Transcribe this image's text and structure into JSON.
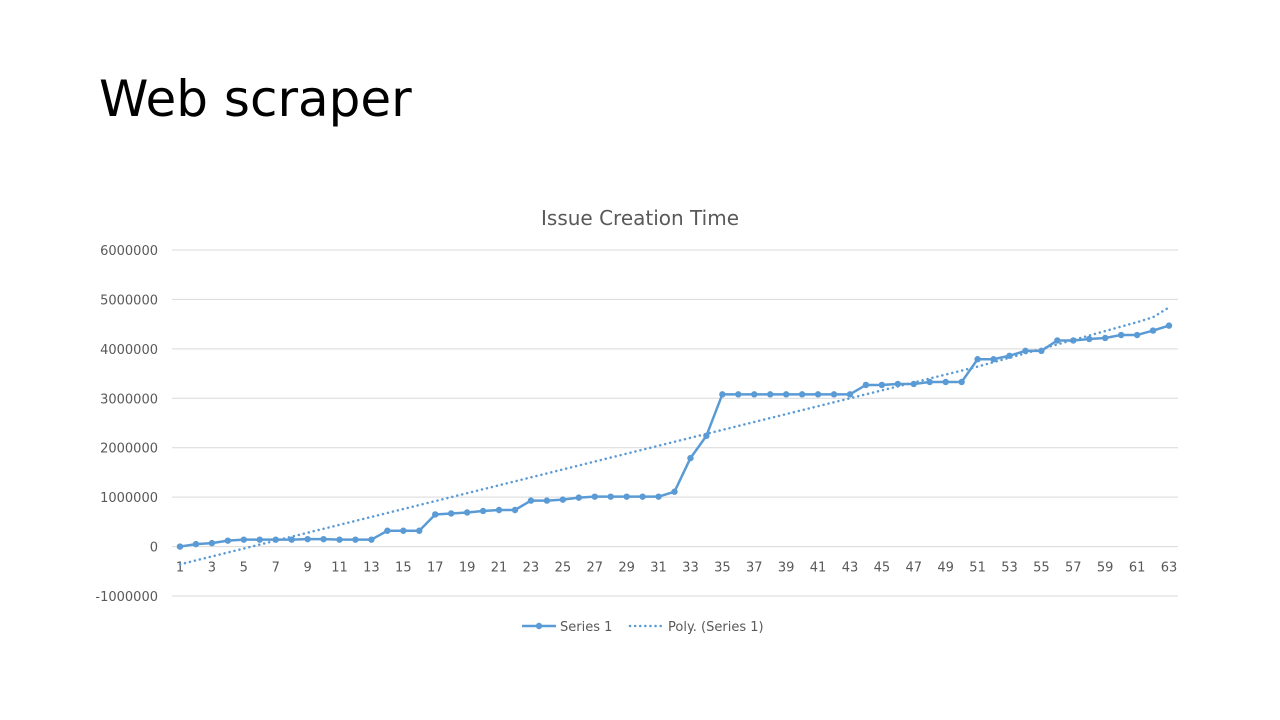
{
  "slide": {
    "title": "Web scraper"
  },
  "colors": {
    "series": "#5B9BD5",
    "gridline": "#d9d9d9",
    "text": "#595959",
    "background": "#ffffff"
  },
  "chart_data": {
    "type": "line",
    "title": "Issue Creation Time",
    "xlabel": "",
    "ylabel": "",
    "ylim": [
      -1000000,
      6000000
    ],
    "yticks": [
      -1000000,
      0,
      1000000,
      2000000,
      3000000,
      4000000,
      5000000,
      6000000
    ],
    "ytick_labels": [
      "-1000000",
      "0",
      "1000000",
      "2000000",
      "3000000",
      "4000000",
      "5000000",
      "6000000"
    ],
    "xtick_labels": [
      "1",
      "3",
      "5",
      "7",
      "9",
      "11",
      "13",
      "15",
      "17",
      "19",
      "21",
      "23",
      "25",
      "27",
      "29",
      "31",
      "33",
      "35",
      "37",
      "39",
      "41",
      "43",
      "45",
      "47",
      "49",
      "51",
      "53",
      "55",
      "57",
      "59",
      "61",
      "63"
    ],
    "grid": true,
    "legend_position": "bottom",
    "legend": [
      "Series 1",
      "Poly. (Series 1)"
    ],
    "x": [
      1,
      2,
      3,
      4,
      5,
      6,
      7,
      8,
      9,
      10,
      11,
      12,
      13,
      14,
      15,
      16,
      17,
      18,
      19,
      20,
      21,
      22,
      23,
      24,
      25,
      26,
      27,
      28,
      29,
      30,
      31,
      32,
      33,
      34,
      35,
      36,
      37,
      38,
      39,
      40,
      41,
      42,
      43,
      44,
      45,
      46,
      47,
      48,
      49,
      50,
      51,
      52,
      53,
      54,
      55,
      56,
      57,
      58,
      59,
      60,
      61,
      62,
      63
    ],
    "series": [
      {
        "name": "Series 1",
        "style": "solid-with-markers",
        "values": [
          0,
          50000,
          70000,
          120000,
          140000,
          140000,
          140000,
          140000,
          150000,
          150000,
          140000,
          140000,
          140000,
          320000,
          320000,
          320000,
          650000,
          670000,
          690000,
          720000,
          740000,
          740000,
          930000,
          930000,
          950000,
          990000,
          1010000,
          1010000,
          1010000,
          1010000,
          1010000,
          1110000,
          1790000,
          2240000,
          3080000,
          3080000,
          3080000,
          3080000,
          3080000,
          3080000,
          3080000,
          3080000,
          3080000,
          3270000,
          3270000,
          3290000,
          3290000,
          3330000,
          3330000,
          3330000,
          3790000,
          3790000,
          3860000,
          3960000,
          3960000,
          4170000,
          4170000,
          4200000,
          4220000,
          4280000,
          4280000,
          4370000,
          4470000
        ]
      },
      {
        "name": "Poly. (Series 1)",
        "style": "dotted-trendline",
        "values": [
          -360000,
          -280000,
          -200000,
          -120000,
          -40000,
          40000,
          120000,
          200000,
          280000,
          360000,
          440000,
          520000,
          600000,
          680000,
          760000,
          840000,
          920000,
          1000000,
          1080000,
          1160000,
          1240000,
          1320000,
          1400000,
          1480000,
          1560000,
          1640000,
          1720000,
          1800000,
          1880000,
          1960000,
          2040000,
          2120000,
          2200000,
          2280000,
          2360000,
          2440000,
          2520000,
          2600000,
          2680000,
          2760000,
          2840000,
          2920000,
          3000000,
          3080000,
          3160000,
          3240000,
          3320000,
          3400000,
          3480000,
          3560000,
          3640000,
          3730000,
          3820000,
          3910000,
          4000000,
          4090000,
          4180000,
          4270000,
          4360000,
          4450000,
          4540000,
          4640000,
          4840000
        ]
      }
    ]
  }
}
